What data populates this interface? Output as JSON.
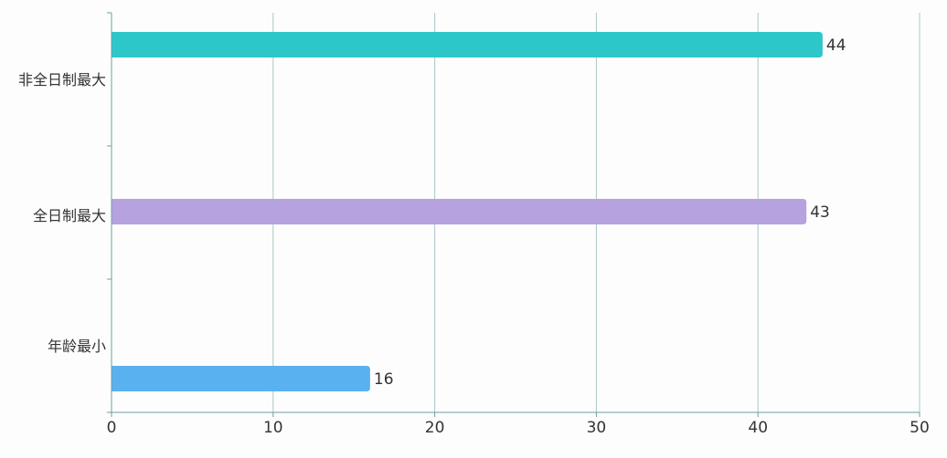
{
  "chart_data": {
    "type": "bar",
    "orientation": "horizontal",
    "title": "",
    "xlabel": "",
    "ylabel": "",
    "categories": [
      "非全日制最大",
      "全日制最大",
      "年龄最小"
    ],
    "values": [
      44,
      43,
      16
    ],
    "bar_colors": [
      "#2ec7c9",
      "#b6a2de",
      "#5ab1ef"
    ],
    "data_labels": [
      "44",
      "43",
      "16"
    ],
    "xlim": [
      0,
      50
    ],
    "x_ticks": [
      0,
      10,
      20,
      30,
      40,
      50
    ],
    "x_tick_labels": [
      "0",
      "10",
      "20",
      "30",
      "40",
      "50"
    ],
    "grid": "vertical",
    "legend": "none"
  },
  "colors": {
    "axis": "#6e9ea0",
    "grid": "#a9c7c7",
    "text": "#333333"
  }
}
